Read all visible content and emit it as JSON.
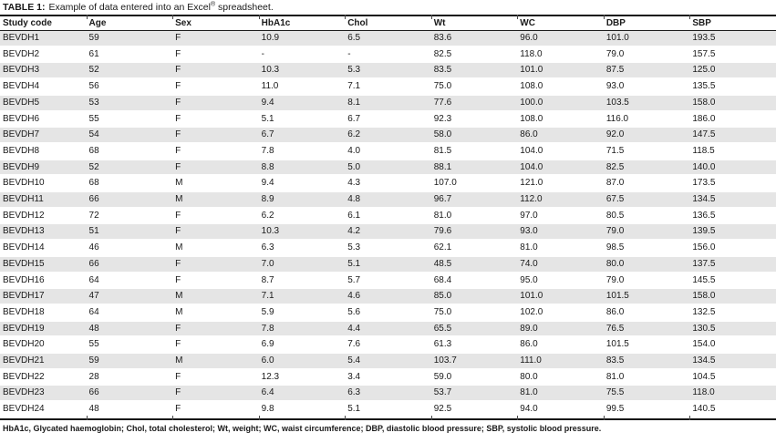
{
  "title": {
    "label": "TABLE 1:",
    "body": "Example of data entered into an Excel",
    "reg_mark": "®",
    "suffix": " spreadsheet."
  },
  "table": {
    "columns": [
      "Study code",
      "Age",
      "Sex",
      "HbA1c",
      "Chol",
      "Wt",
      "WC",
      "DBP",
      "SBP"
    ],
    "rows": [
      [
        "BEVDH1",
        "59",
        "F",
        "10.9",
        "6.5",
        "83.6",
        "96.0",
        "101.0",
        "193.5"
      ],
      [
        "BEVDH2",
        "61",
        "F",
        "-",
        "-",
        "82.5",
        "118.0",
        "79.0",
        "157.5"
      ],
      [
        "BEVDH3",
        "52",
        "F",
        "10.3",
        "5.3",
        "83.5",
        "101.0",
        "87.5",
        "125.0"
      ],
      [
        "BEVDH4",
        "56",
        "F",
        "11.0",
        "7.1",
        "75.0",
        "108.0",
        "93.0",
        "135.5"
      ],
      [
        "BEVDH5",
        "53",
        "F",
        "9.4",
        "8.1",
        "77.6",
        "100.0",
        "103.5",
        "158.0"
      ],
      [
        "BEVDH6",
        "55",
        "F",
        "5.1",
        "6.7",
        "92.3",
        "108.0",
        "116.0",
        "186.0"
      ],
      [
        "BEVDH7",
        "54",
        "F",
        "6.7",
        "6.2",
        "58.0",
        "86.0",
        "92.0",
        "147.5"
      ],
      [
        "BEVDH8",
        "68",
        "F",
        "7.8",
        "4.0",
        "81.5",
        "104.0",
        "71.5",
        "118.5"
      ],
      [
        "BEVDH9",
        "52",
        "F",
        "8.8",
        "5.0",
        "88.1",
        "104.0",
        "82.5",
        "140.0"
      ],
      [
        "BEVDH10",
        "68",
        "M",
        "9.4",
        "4.3",
        "107.0",
        "121.0",
        "87.0",
        "173.5"
      ],
      [
        "BEVDH11",
        "66",
        "M",
        "8.9",
        "4.8",
        "96.7",
        "112.0",
        "67.5",
        "134.5"
      ],
      [
        "BEVDH12",
        "72",
        "F",
        "6.2",
        "6.1",
        "81.0",
        "97.0",
        "80.5",
        "136.5"
      ],
      [
        "BEVDH13",
        "51",
        "F",
        "10.3",
        "4.2",
        "79.6",
        "93.0",
        "79.0",
        "139.5"
      ],
      [
        "BEVDH14",
        "46",
        "M",
        "6.3",
        "5.3",
        "62.1",
        "81.0",
        "98.5",
        "156.0"
      ],
      [
        "BEVDH15",
        "66",
        "F",
        "7.0",
        "5.1",
        "48.5",
        "74.0",
        "80.0",
        "137.5"
      ],
      [
        "BEVDH16",
        "64",
        "F",
        "8.7",
        "5.7",
        "68.4",
        "95.0",
        "79.0",
        "145.5"
      ],
      [
        "BEVDH17",
        "47",
        "M",
        "7.1",
        "4.6",
        "85.0",
        "101.0",
        "101.5",
        "158.0"
      ],
      [
        "BEVDH18",
        "64",
        "M",
        "5.9",
        "5.6",
        "75.0",
        "102.0",
        "86.0",
        "132.5"
      ],
      [
        "BEVDH19",
        "48",
        "F",
        "7.8",
        "4.4",
        "65.5",
        "89.0",
        "76.5",
        "130.5"
      ],
      [
        "BEVDH20",
        "55",
        "F",
        "6.9",
        "7.6",
        "61.3",
        "86.0",
        "101.5",
        "154.0"
      ],
      [
        "BEVDH21",
        "59",
        "M",
        "6.0",
        "5.4",
        "103.7",
        "111.0",
        "83.5",
        "134.5"
      ],
      [
        "BEVDH22",
        "28",
        "F",
        "12.3",
        "3.4",
        "59.0",
        "80.0",
        "81.0",
        "104.5"
      ],
      [
        "BEVDH23",
        "66",
        "F",
        "6.4",
        "6.3",
        "53.7",
        "81.0",
        "75.5",
        "118.0"
      ],
      [
        "BEVDH24",
        "48",
        "F",
        "9.8",
        "5.1",
        "92.5",
        "94.0",
        "99.5",
        "140.5"
      ]
    ]
  },
  "footnote": "HbA1c, Glycated haemoglobin; Chol, total cholesterol; Wt, weight; WC, waist circumference; DBP, diastolic blood pressure; SBP, systolic blood pressure.",
  "colors": {
    "row_shade": "#e5e5e5",
    "rule": "#141414",
    "text": "#1a1a1a"
  }
}
